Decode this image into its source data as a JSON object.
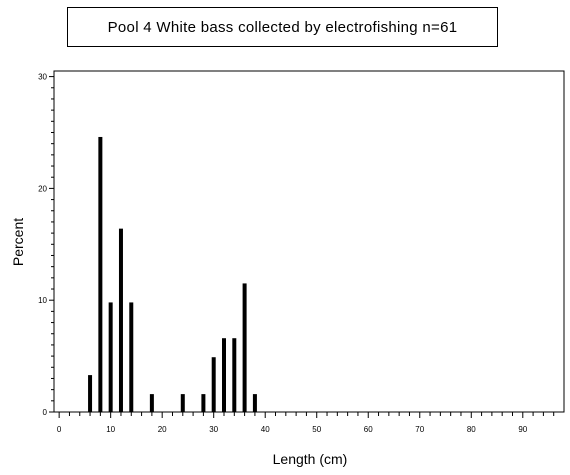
{
  "chart_data": {
    "type": "bar",
    "title": "Pool 4 White bass collected by electrofishing n=61",
    "xlabel": "Length (cm)",
    "ylabel": "Percent",
    "xlim": [
      -1,
      98
    ],
    "ylim": [
      0,
      30.5
    ],
    "x_ticks": [
      0,
      10,
      20,
      30,
      40,
      50,
      60,
      70,
      80,
      90
    ],
    "y_ticks": [
      0,
      10,
      20,
      30
    ],
    "x": [
      6,
      8,
      10,
      12,
      14,
      18,
      24,
      28,
      30,
      32,
      34,
      36,
      38
    ],
    "values": [
      3.3,
      24.6,
      9.8,
      16.4,
      9.8,
      1.6,
      1.6,
      1.6,
      4.9,
      6.6,
      6.6,
      11.5,
      1.6
    ],
    "grid": false,
    "legend": "none"
  },
  "colors": {
    "bar": "#000000",
    "axis": "#000000",
    "background": "#ffffff"
  }
}
